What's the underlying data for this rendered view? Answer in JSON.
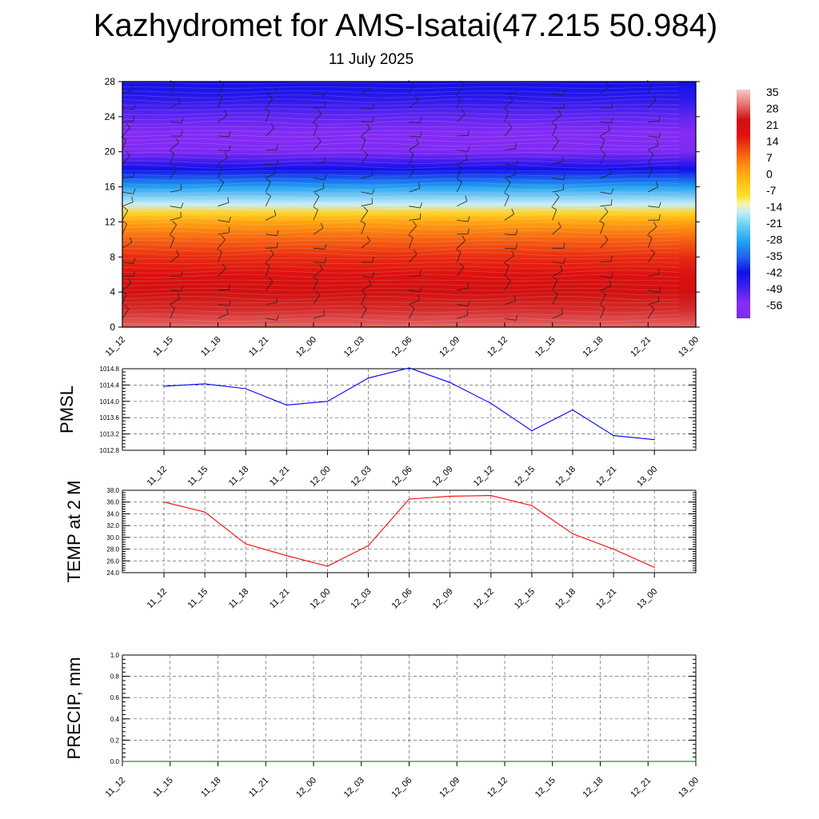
{
  "title": "Kazhydromet for AMS-Isatai(47.215 50.984)",
  "subtitle": "11 July 2025",
  "chart_data": [
    {
      "type": "heatmap",
      "name": "cross-section",
      "x_tick_labels": [
        "11_12",
        "11_15",
        "11_18",
        "11_21",
        "12_00",
        "12_03",
        "12_06",
        "12_09",
        "12_12",
        "12_15",
        "12_18",
        "12_21",
        "13_00"
      ],
      "y_ticks": [
        0,
        4,
        8,
        12,
        16,
        20,
        24,
        28
      ],
      "ylim": [
        0,
        28
      ],
      "colorbar_labels": [
        "35",
        "28",
        "21",
        "14",
        "7",
        "0",
        "-7",
        "-14",
        "-21",
        "-28",
        "-35",
        "-42",
        "-49",
        "-56"
      ],
      "colorbar_range": [
        -63,
        42
      ],
      "approx_values_by_level": {
        "levels": [
          0,
          2,
          4,
          6,
          8,
          10,
          12,
          13,
          14,
          16,
          18,
          20,
          22,
          24,
          26,
          28
        ],
        "values": [
          34,
          30,
          26,
          22,
          18,
          12,
          4,
          -4,
          -14,
          -28,
          -42,
          -55,
          -58,
          -52,
          -46,
          -42
        ]
      },
      "note_barbs": "wind barbs overlay"
    },
    {
      "type": "line",
      "ylabel": "PMSL",
      "x_tick_labels": [
        "11_12",
        "11_15",
        "11_18",
        "11_21",
        "12_00",
        "12_03",
        "12_06",
        "12_09",
        "12_12",
        "12_15",
        "12_18",
        "12_21",
        "13_00"
      ],
      "y_tick_labels": [
        "1012.8",
        "1013.2",
        "1013.6",
        "1014.0",
        "1014.4",
        "1014.8"
      ],
      "ylim": [
        1012.8,
        1014.8
      ],
      "series": [
        {
          "values": [
            1014.37,
            1014.43,
            1014.31,
            1013.91,
            1014.0,
            1014.57,
            1014.82,
            1014.46,
            1013.95,
            1013.28,
            1013.79,
            1013.16,
            1013.06
          ],
          "color": "#0000ff"
        }
      ],
      "grid": true
    },
    {
      "type": "line",
      "ylabel": "TEMP at 2 M",
      "x_tick_labels": [
        "11_12",
        "11_15",
        "11_18",
        "11_21",
        "12_00",
        "12_03",
        "12_06",
        "12_09",
        "12_12",
        "12_15",
        "12_18",
        "12_21",
        "13_00"
      ],
      "y_tick_labels": [
        "24.0",
        "26.0",
        "28.0",
        "30.0",
        "32.0",
        "34.0",
        "36.0",
        "38.0"
      ],
      "ylim": [
        24,
        38
      ],
      "series": [
        {
          "values": [
            36.0,
            34.3,
            28.9,
            26.9,
            25.1,
            28.6,
            36.5,
            37.0,
            37.1,
            35.4,
            30.6,
            28.0,
            24.9
          ],
          "color": "#ff0000"
        }
      ],
      "grid": true
    },
    {
      "type": "line",
      "ylabel": "PRECIP, mm",
      "x_tick_labels": [
        "11_12",
        "11_15",
        "11_18",
        "11_21",
        "12_00",
        "12_03",
        "12_06",
        "12_09",
        "12_12",
        "12_15",
        "12_18",
        "12_21",
        "13_00"
      ],
      "y_tick_labels": [
        "0.0",
        "0.2",
        "0.4",
        "0.6",
        "0.8",
        "1.0"
      ],
      "ylim": [
        0,
        1
      ],
      "series": [
        {
          "values": [
            0,
            0,
            0,
            0,
            0,
            0,
            0,
            0,
            0,
            0,
            0,
            0,
            0
          ],
          "color": "#006400"
        }
      ],
      "grid": true
    }
  ]
}
